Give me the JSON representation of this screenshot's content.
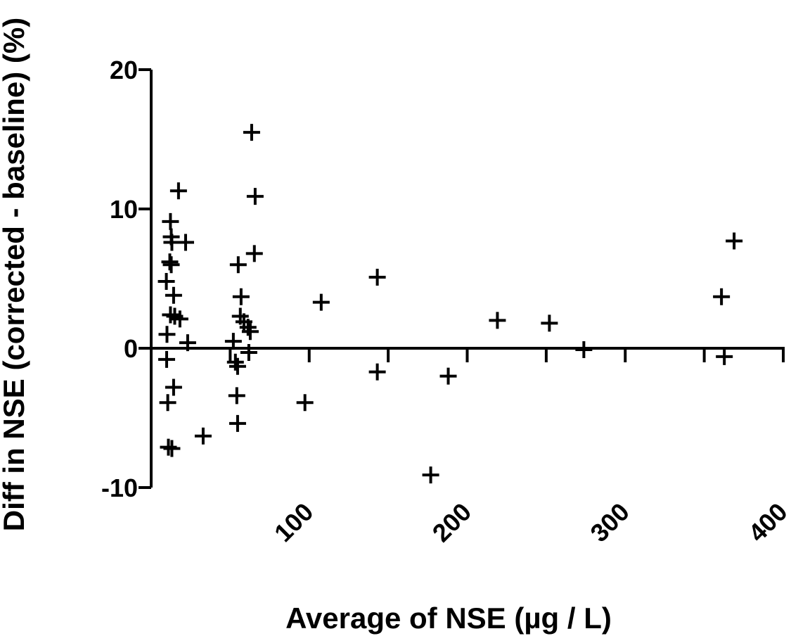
{
  "chart_data": {
    "type": "scatter",
    "title": "",
    "xlabel": "Average of NSE (µg / L)",
    "ylabel": "Diff in NSE (corrected - baseline)  (%)",
    "xlim": [
      0,
      400
    ],
    "ylim": [
      -10,
      20
    ],
    "x_ticks": [
      100,
      200,
      300,
      400
    ],
    "y_ticks": [
      -10,
      0,
      10,
      20
    ],
    "x_tick_labels": [
      "100",
      "200",
      "300",
      "400"
    ],
    "y_tick_labels": [
      "-10",
      "0",
      "10",
      "20"
    ],
    "marker": "plus",
    "marker_color": "#000000",
    "grid": false,
    "zero_line": true,
    "points": [
      [
        9.6,
        4.8
      ],
      [
        10.0,
        1.0
      ],
      [
        9.8,
        -0.8
      ],
      [
        10.5,
        -3.9
      ],
      [
        10.9,
        -7.1
      ],
      [
        13.1,
        -7.2
      ],
      [
        12.2,
        9.1
      ],
      [
        12.7,
        8.0
      ],
      [
        13.1,
        7.6
      ],
      [
        11.8,
        6.2
      ],
      [
        12.7,
        6.0
      ],
      [
        14.2,
        3.8
      ],
      [
        12.2,
        2.4
      ],
      [
        14.9,
        2.3
      ],
      [
        18.2,
        2.1
      ],
      [
        17.3,
        11.3
      ],
      [
        14.2,
        -2.8
      ],
      [
        21.8,
        7.6
      ],
      [
        23.1,
        0.4
      ],
      [
        32.9,
        -6.3
      ],
      [
        52.0,
        0.5
      ],
      [
        53.3,
        -1.0
      ],
      [
        54.7,
        -1.3
      ],
      [
        54.2,
        -3.4
      ],
      [
        54.7,
        -5.4
      ],
      [
        55.1,
        6.0
      ],
      [
        56.9,
        3.7
      ],
      [
        56.4,
        2.3
      ],
      [
        58.7,
        1.9
      ],
      [
        61.3,
        1.5
      ],
      [
        62.7,
        1.2
      ],
      [
        61.8,
        -0.3
      ],
      [
        65.3,
        6.8
      ],
      [
        63.6,
        15.5
      ],
      [
        65.8,
        10.9
      ],
      [
        97.3,
        -3.9
      ],
      [
        107.6,
        3.3
      ],
      [
        143.1,
        5.1
      ],
      [
        143.1,
        -1.7
      ],
      [
        176.9,
        -9.1
      ],
      [
        188.0,
        -2.0
      ],
      [
        219.1,
        2.0
      ],
      [
        252.0,
        1.8
      ],
      [
        273.8,
        -0.1
      ],
      [
        360.9,
        3.7
      ],
      [
        362.7,
        -0.6
      ],
      [
        368.9,
        7.7
      ]
    ]
  }
}
